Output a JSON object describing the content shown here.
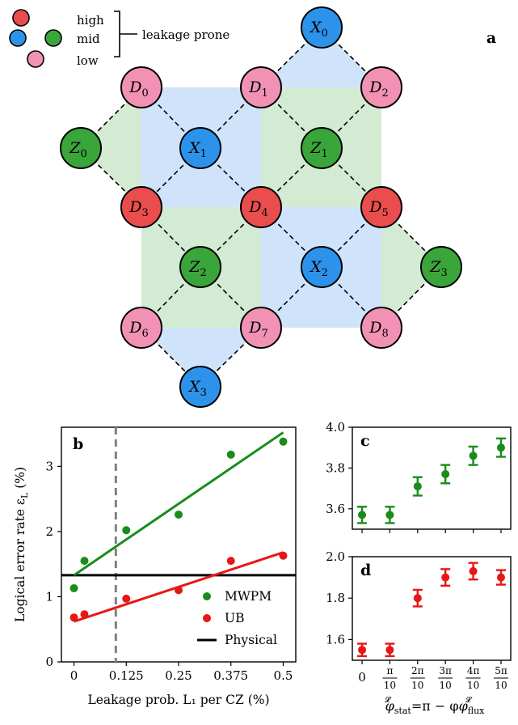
{
  "lattice": {
    "panel_label": "a",
    "legend": {
      "high": "high",
      "mid": "mid",
      "low": "low",
      "bracket_label": "leakage prone",
      "colors": {
        "high": "#ea4d4d",
        "mid": "#2d93ea",
        "mid2": "#3aa53a",
        "low": "#f191b4"
      }
    },
    "qubits": [
      {
        "id": "X0",
        "letter": "X",
        "sub": "0",
        "color": "#2d93ea"
      },
      {
        "id": "D0",
        "letter": "D",
        "sub": "0",
        "color": "#f191b4"
      },
      {
        "id": "D1",
        "letter": "D",
        "sub": "1",
        "color": "#f191b4"
      },
      {
        "id": "D2",
        "letter": "D",
        "sub": "2",
        "color": "#f191b4"
      },
      {
        "id": "Z0",
        "letter": "Z",
        "sub": "0",
        "color": "#3aa53a"
      },
      {
        "id": "X1",
        "letter": "X",
        "sub": "1",
        "color": "#2d93ea"
      },
      {
        "id": "Z1",
        "letter": "Z",
        "sub": "1",
        "color": "#3aa53a"
      },
      {
        "id": "D3",
        "letter": "D",
        "sub": "3",
        "color": "#ea4d4d"
      },
      {
        "id": "D4",
        "letter": "D",
        "sub": "4",
        "color": "#ea4d4d"
      },
      {
        "id": "D5",
        "letter": "D",
        "sub": "5",
        "color": "#ea4d4d"
      },
      {
        "id": "Z2",
        "letter": "Z",
        "sub": "2",
        "color": "#3aa53a"
      },
      {
        "id": "X2",
        "letter": "X",
        "sub": "2",
        "color": "#2d93ea"
      },
      {
        "id": "Z3",
        "letter": "Z",
        "sub": "3",
        "color": "#3aa53a"
      },
      {
        "id": "D6",
        "letter": "D",
        "sub": "6",
        "color": "#f191b4"
      },
      {
        "id": "D7",
        "letter": "D",
        "sub": "7",
        "color": "#f191b4"
      },
      {
        "id": "D8",
        "letter": "D",
        "sub": "8",
        "color": "#f191b4"
      },
      {
        "id": "X3",
        "letter": "X",
        "sub": "3",
        "color": "#2d93ea"
      }
    ],
    "couplings": [
      [
        "X0",
        "D1"
      ],
      [
        "X0",
        "D2"
      ],
      [
        "D0",
        "Z0"
      ],
      [
        "D0",
        "X1"
      ],
      [
        "D1",
        "X1"
      ],
      [
        "D1",
        "Z1"
      ],
      [
        "D2",
        "Z1"
      ],
      [
        "Z0",
        "D3"
      ],
      [
        "X1",
        "D3"
      ],
      [
        "X1",
        "D4"
      ],
      [
        "Z1",
        "D4"
      ],
      [
        "Z1",
        "D5"
      ],
      [
        "D3",
        "Z2"
      ],
      [
        "D4",
        "Z2"
      ],
      [
        "D4",
        "X2"
      ],
      [
        "D5",
        "X2"
      ],
      [
        "D5",
        "Z3"
      ],
      [
        "Z2",
        "D6"
      ],
      [
        "Z2",
        "D7"
      ],
      [
        "X2",
        "D7"
      ],
      [
        "X2",
        "D8"
      ],
      [
        "Z3",
        "D8"
      ],
      [
        "D6",
        "X3"
      ],
      [
        "D7",
        "X3"
      ]
    ],
    "plaquette_colors": {
      "x": "#cfe4fb",
      "z": "#d3ead3"
    }
  },
  "chart_data": [
    {
      "panel_label": "b",
      "type": "scatter",
      "xlabel": "Leakage prob. L₁ per CZ (%)",
      "ylabel": "Logical error rate ε",
      "ylabel_sub": "L",
      "ylabel_tail": " (%)",
      "xlim": [
        -0.03,
        0.53
      ],
      "ylim": [
        0,
        3.6
      ],
      "x_ticks": [
        0,
        0.125,
        0.25,
        0.375,
        0.5
      ],
      "x_tick_labels": [
        "0",
        "0.125",
        "0.25",
        "0.375",
        "0.5"
      ],
      "y_ticks": [
        0,
        1,
        2,
        3
      ],
      "y_tick_labels": [
        "0",
        "1",
        "2",
        "3"
      ],
      "reference_vline_x": 0.1,
      "physical_line_y": 1.33,
      "series": [
        {
          "name": "MWPM",
          "color": "#198c19",
          "x": [
            0,
            0.025,
            0.125,
            0.25,
            0.375,
            0.5
          ],
          "y": [
            1.13,
            1.55,
            2.02,
            2.26,
            3.18,
            3.38
          ],
          "fit": {
            "x": [
              0,
              0.5
            ],
            "y": [
              1.33,
              3.52
            ]
          }
        },
        {
          "name": "UB",
          "color": "#e81616",
          "x": [
            0,
            0.025,
            0.125,
            0.25,
            0.375,
            0.5
          ],
          "y": [
            0.68,
            0.73,
            0.97,
            1.1,
            1.55,
            1.63
          ],
          "fit": {
            "x": [
              0,
              0.5
            ],
            "y": [
              0.62,
              1.68
            ]
          }
        }
      ],
      "legend": [
        {
          "label": "MWPM",
          "kind": "dot",
          "color": "#198c19"
        },
        {
          "label": "UB",
          "kind": "dot",
          "color": "#e81616"
        },
        {
          "label": "Physical",
          "kind": "line",
          "color": "#000000"
        }
      ],
      "legend_position": "bottom-right"
    },
    {
      "panel_label": "c",
      "type": "scatter",
      "ylim": [
        3.5,
        4.0
      ],
      "y_ticks": [
        3.6,
        3.8,
        4.0
      ],
      "y_tick_labels": [
        "3.6",
        "3.8",
        "4.0"
      ],
      "series": [
        {
          "name": "",
          "color": "#198c19",
          "x": [
            0,
            1,
            2,
            3,
            4,
            5
          ],
          "y": [
            3.57,
            3.57,
            3.71,
            3.77,
            3.86,
            3.9
          ],
          "err": [
            0.04,
            0.04,
            0.045,
            0.045,
            0.045,
            0.045
          ]
        }
      ]
    },
    {
      "panel_label": "d",
      "type": "scatter",
      "ylim": [
        1.5,
        2.0
      ],
      "y_ticks": [
        1.6,
        1.8,
        2.0
      ],
      "y_tick_labels": [
        "1.6",
        "1.8",
        "2.0"
      ],
      "x_ticks": [
        0,
        1,
        2,
        3,
        4,
        5
      ],
      "x_tick_labels": [
        [
          "0",
          ""
        ],
        [
          "π",
          "10"
        ],
        [
          "2π",
          "10"
        ],
        [
          "3π",
          "10"
        ],
        [
          "4π",
          "10"
        ],
        [
          "5π",
          "10"
        ]
      ],
      "xlabel_parts": [
        "φ",
        "stat",
        "=π − φ",
        "flux"
      ],
      "xlabel_sup": "𝓛",
      "series": [
        {
          "name": "",
          "color": "#e81616",
          "x": [
            0,
            1,
            2,
            3,
            4,
            5
          ],
          "y": [
            1.55,
            1.55,
            1.8,
            1.9,
            1.93,
            1.9
          ],
          "err": [
            0.03,
            0.03,
            0.04,
            0.04,
            0.04,
            0.035
          ]
        }
      ]
    }
  ]
}
